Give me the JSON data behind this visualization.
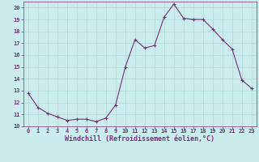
{
  "x": [
    0,
    1,
    2,
    3,
    4,
    5,
    6,
    7,
    8,
    9,
    10,
    11,
    12,
    13,
    14,
    15,
    16,
    17,
    18,
    19,
    20,
    21,
    22,
    23
  ],
  "y": [
    12.8,
    11.6,
    11.1,
    10.8,
    10.5,
    10.6,
    10.6,
    10.4,
    10.7,
    11.8,
    15.0,
    17.3,
    16.6,
    16.8,
    19.2,
    20.3,
    19.1,
    19.0,
    19.0,
    18.2,
    17.3,
    16.5,
    13.9,
    13.2
  ],
  "line_color": "#7b2d7b",
  "marker": "+",
  "marker_size": 3.5,
  "bg_color": "#cbecec",
  "grid_color": "#a8d8d8",
  "xlabel": "Windchill (Refroidissement éolien,°C)",
  "xlabel_color": "#7b2d7b",
  "tick_color": "#7b2d7b",
  "spine_color": "#7b2d7b",
  "xlim": [
    -0.5,
    23.5
  ],
  "ylim": [
    10,
    20.5
  ],
  "yticks": [
    10,
    11,
    12,
    13,
    14,
    15,
    16,
    17,
    18,
    19,
    20
  ],
  "xticks": [
    0,
    1,
    2,
    3,
    4,
    5,
    6,
    7,
    8,
    9,
    10,
    11,
    12,
    13,
    14,
    15,
    16,
    17,
    18,
    19,
    20,
    21,
    22,
    23
  ],
  "tick_labelsize": 5.0,
  "xlabel_fontsize": 6.0,
  "linewidth": 0.8,
  "figsize": [
    3.2,
    2.0
  ],
  "dpi": 100
}
